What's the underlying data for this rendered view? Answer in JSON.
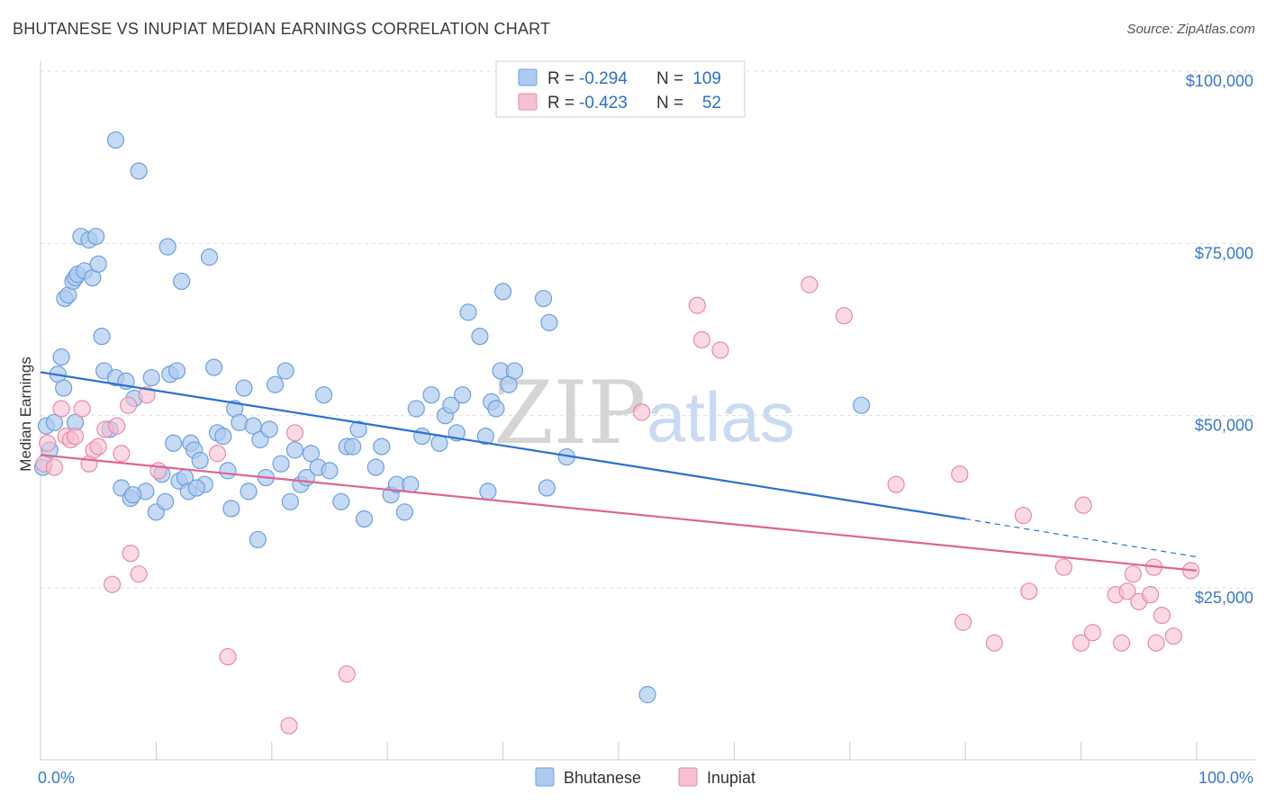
{
  "header": {
    "title": "BHUTANESE VS INUPIAT MEDIAN EARNINGS CORRELATION CHART",
    "source": "Source: ZipAtlas.com"
  },
  "watermark": {
    "zip": "ZIP",
    "atlas": "atlas"
  },
  "colors": {
    "bhutanese_fill": "#aecbf0",
    "bhutanese_stroke": "#6d9fdb",
    "bhutanese_line": "#2a6fd4",
    "inupiat_fill": "#f7bfd2",
    "inupiat_stroke": "#e68aab",
    "inupiat_line": "#e0648f",
    "grid": "#dddddd",
    "axis_text": "#3a78c8"
  },
  "legend": {
    "rows": [
      {
        "r_label": "R =",
        "r_value": "-0.294",
        "n_label": "N =",
        "n_value": "109"
      },
      {
        "r_label": "R =",
        "r_value": "-0.423",
        "n_label": "N =",
        "n_value": "52"
      }
    ]
  },
  "bottom_legend": [
    "Bhutanese",
    "Inupiat"
  ],
  "chart_data": {
    "type": "scatter",
    "xlabel": "",
    "ylabel": "Median Earnings",
    "xlim": [
      0,
      100
    ],
    "ylim": [
      0,
      105000
    ],
    "x_tick_labels": [
      "0.0%",
      "100.0%"
    ],
    "y_ticks": [
      25000,
      50000,
      75000,
      100000
    ],
    "y_tick_labels": [
      "$25,000",
      "$50,000",
      "$75,000",
      "$100,000"
    ],
    "grid": true,
    "legend_position": "top-center",
    "series": [
      {
        "name": "Bhutanese",
        "r": -0.294,
        "n": 109,
        "trend": {
          "x0": 0,
          "y0": 56300,
          "x1": 80,
          "y1": 35000,
          "dashed_to_x": 100,
          "dashed_to_y": 29500
        },
        "points": [
          [
            0.5,
            48500
          ],
          [
            0.8,
            45000
          ],
          [
            1.2,
            49000
          ],
          [
            1.5,
            56000
          ],
          [
            1.8,
            58500
          ],
          [
            2.0,
            54000
          ],
          [
            2.1,
            67000
          ],
          [
            2.4,
            67500
          ],
          [
            2.8,
            69500
          ],
          [
            3.0,
            70000
          ],
          [
            3.2,
            70500
          ],
          [
            3.5,
            76000
          ],
          [
            3.8,
            71000
          ],
          [
            4.2,
            75500
          ],
          [
            4.5,
            70000
          ],
          [
            4.8,
            76000
          ],
          [
            5.0,
            72000
          ],
          [
            5.3,
            61500
          ],
          [
            5.5,
            56500
          ],
          [
            6.0,
            48000
          ],
          [
            6.5,
            55500
          ],
          [
            7.0,
            39500
          ],
          [
            7.4,
            55000
          ],
          [
            7.8,
            38000
          ],
          [
            8.1,
            52500
          ],
          [
            8.5,
            85500
          ],
          [
            9.1,
            39000
          ],
          [
            9.6,
            55500
          ],
          [
            10.0,
            36000
          ],
          [
            10.5,
            41500
          ],
          [
            10.8,
            37500
          ],
          [
            11.0,
            74500
          ],
          [
            11.2,
            56000
          ],
          [
            11.5,
            46000
          ],
          [
            11.8,
            56500
          ],
          [
            12.0,
            40500
          ],
          [
            12.2,
            69500
          ],
          [
            12.5,
            41000
          ],
          [
            12.8,
            39000
          ],
          [
            13.0,
            46000
          ],
          [
            13.3,
            45000
          ],
          [
            13.8,
            43500
          ],
          [
            14.2,
            40000
          ],
          [
            14.6,
            73000
          ],
          [
            15.0,
            57000
          ],
          [
            15.3,
            47500
          ],
          [
            15.8,
            47000
          ],
          [
            16.2,
            42000
          ],
          [
            16.5,
            36500
          ],
          [
            16.8,
            51000
          ],
          [
            17.2,
            49000
          ],
          [
            17.6,
            54000
          ],
          [
            18.0,
            39000
          ],
          [
            18.4,
            48500
          ],
          [
            18.8,
            32000
          ],
          [
            19.0,
            46500
          ],
          [
            19.5,
            41000
          ],
          [
            19.8,
            48000
          ],
          [
            20.3,
            54500
          ],
          [
            20.8,
            43000
          ],
          [
            21.2,
            56500
          ],
          [
            21.6,
            37500
          ],
          [
            22.0,
            45000
          ],
          [
            22.5,
            40000
          ],
          [
            23.0,
            41000
          ],
          [
            23.4,
            44500
          ],
          [
            24.0,
            42500
          ],
          [
            24.5,
            53000
          ],
          [
            25.0,
            42000
          ],
          [
            26.5,
            45500
          ],
          [
            27.0,
            45500
          ],
          [
            27.5,
            48000
          ],
          [
            28.0,
            35000
          ],
          [
            29.0,
            42500
          ],
          [
            29.5,
            45500
          ],
          [
            30.3,
            38500
          ],
          [
            30.8,
            40000
          ],
          [
            31.5,
            36000
          ],
          [
            32.0,
            40000
          ],
          [
            32.5,
            51000
          ],
          [
            33.0,
            47000
          ],
          [
            33.8,
            53000
          ],
          [
            34.5,
            46000
          ],
          [
            35.0,
            50000
          ],
          [
            35.5,
            51500
          ],
          [
            36.0,
            47500
          ],
          [
            36.5,
            53000
          ],
          [
            37.0,
            65000
          ],
          [
            38.0,
            61500
          ],
          [
            38.5,
            47000
          ],
          [
            38.7,
            39000
          ],
          [
            39.0,
            52000
          ],
          [
            39.4,
            51000
          ],
          [
            39.8,
            56500
          ],
          [
            40.0,
            68000
          ],
          [
            40.5,
            54500
          ],
          [
            41.0,
            56500
          ],
          [
            43.5,
            67000
          ],
          [
            43.8,
            39500
          ],
          [
            44.0,
            63500
          ],
          [
            45.5,
            44000
          ],
          [
            52.5,
            9500
          ],
          [
            71.0,
            51500
          ],
          [
            3.0,
            49000
          ],
          [
            8.0,
            38500
          ],
          [
            13.5,
            39500
          ],
          [
            26.0,
            37500
          ],
          [
            0.2,
            42500
          ],
          [
            6.5,
            90000
          ]
        ]
      },
      {
        "name": "Inupiat",
        "r": -0.423,
        "n": 52,
        "trend": {
          "x0": 0,
          "y0": 44300,
          "x1": 100,
          "y1": 27500
        },
        "points": [
          [
            0.3,
            43000
          ],
          [
            0.6,
            46000
          ],
          [
            1.2,
            42500
          ],
          [
            1.8,
            51000
          ],
          [
            2.2,
            47000
          ],
          [
            2.6,
            46500
          ],
          [
            3.0,
            47000
          ],
          [
            3.6,
            51000
          ],
          [
            4.2,
            43000
          ],
          [
            4.6,
            45000
          ],
          [
            5.0,
            45500
          ],
          [
            5.6,
            48000
          ],
          [
            6.2,
            25500
          ],
          [
            6.6,
            48500
          ],
          [
            7.0,
            44500
          ],
          [
            7.6,
            51500
          ],
          [
            7.8,
            30000
          ],
          [
            8.5,
            27000
          ],
          [
            9.2,
            53000
          ],
          [
            10.2,
            42000
          ],
          [
            15.3,
            44500
          ],
          [
            16.2,
            15000
          ],
          [
            21.5,
            5000
          ],
          [
            22.0,
            47500
          ],
          [
            26.5,
            12500
          ],
          [
            52.0,
            50500
          ],
          [
            56.8,
            66000
          ],
          [
            57.2,
            61000
          ],
          [
            58.8,
            59500
          ],
          [
            66.5,
            69000
          ],
          [
            69.5,
            64500
          ],
          [
            74.0,
            40000
          ],
          [
            79.5,
            41500
          ],
          [
            79.8,
            20000
          ],
          [
            82.5,
            17000
          ],
          [
            85.0,
            35500
          ],
          [
            85.5,
            24500
          ],
          [
            88.5,
            28000
          ],
          [
            90.0,
            17000
          ],
          [
            90.2,
            37000
          ],
          [
            91.0,
            18500
          ],
          [
            93.0,
            24000
          ],
          [
            93.5,
            17000
          ],
          [
            94.0,
            24500
          ],
          [
            94.5,
            27000
          ],
          [
            95.0,
            23000
          ],
          [
            96.0,
            24000
          ],
          [
            96.3,
            28000
          ],
          [
            97.0,
            21000
          ],
          [
            98.0,
            18000
          ],
          [
            99.5,
            27500
          ],
          [
            96.5,
            17000
          ]
        ]
      }
    ]
  }
}
